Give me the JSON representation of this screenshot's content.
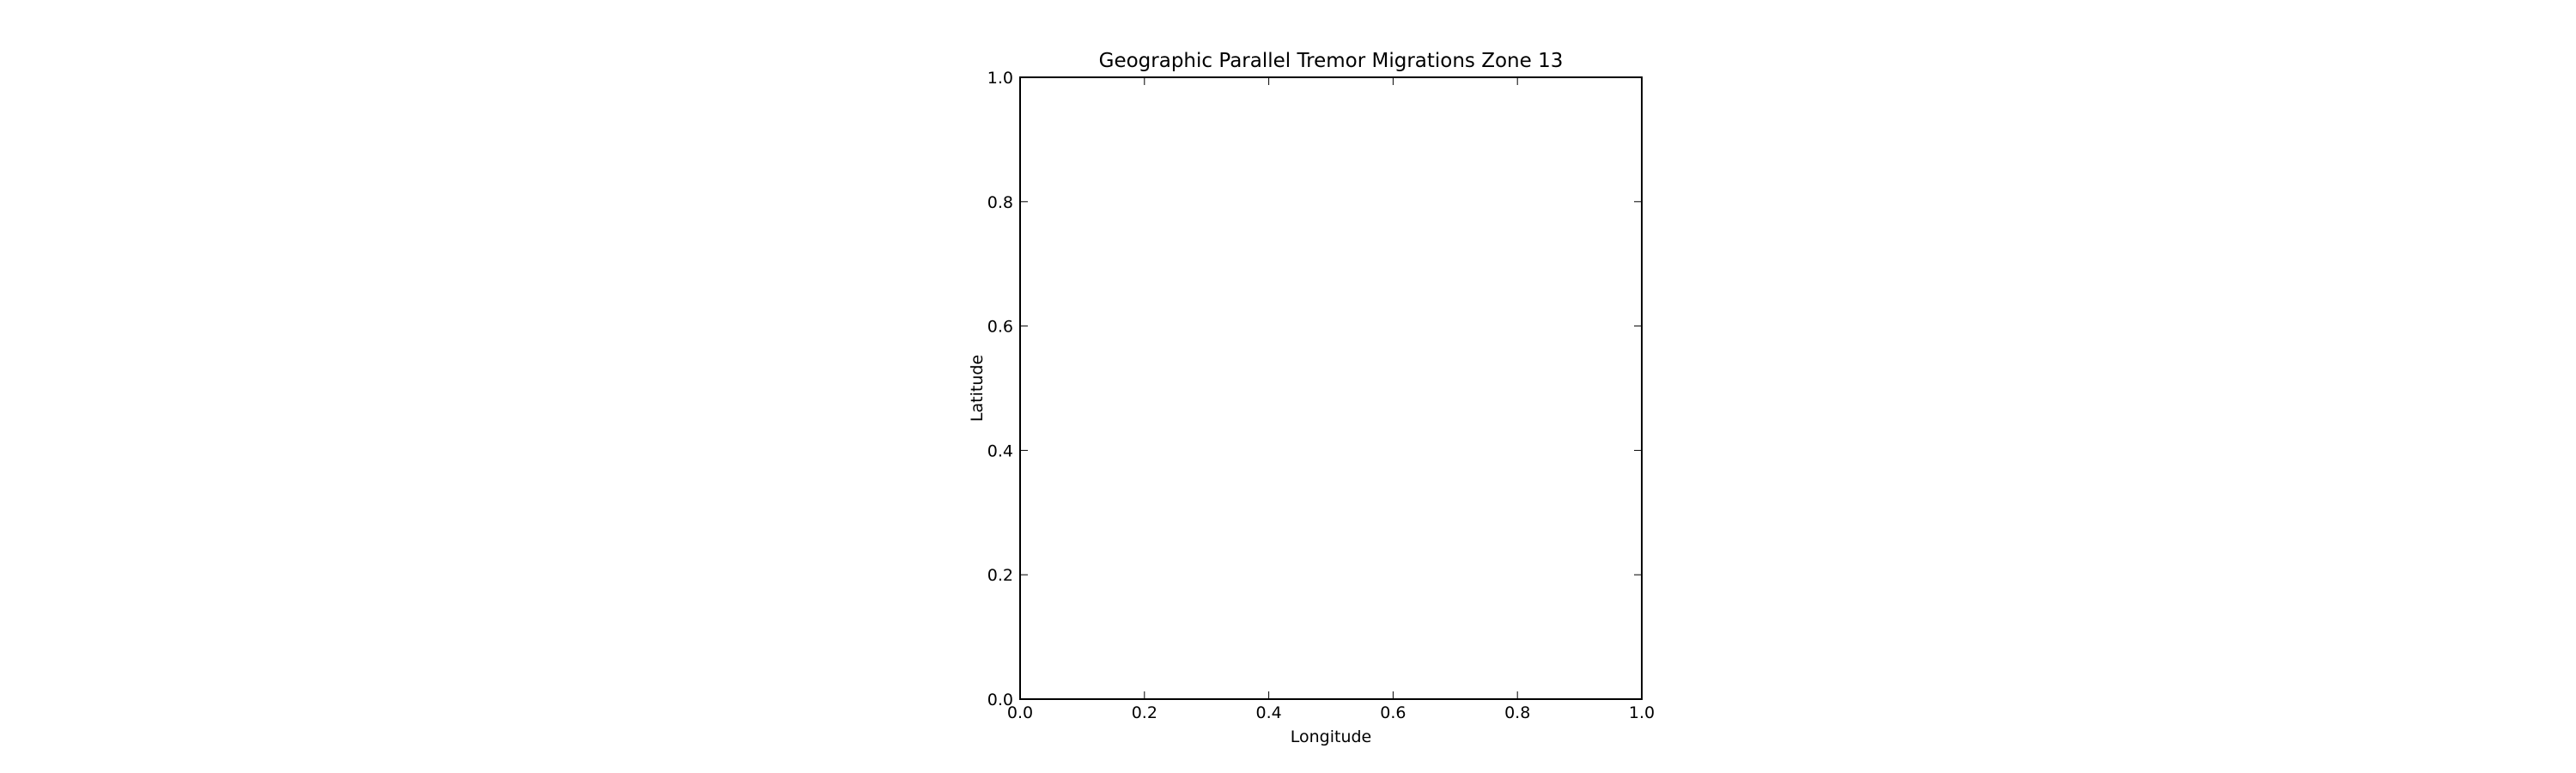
{
  "chart_data": {
    "type": "scatter",
    "title": "Geographic Parallel Tremor Migrations Zone 13",
    "xlabel": "Longitude",
    "ylabel": "Latitude",
    "xlim": [
      0.0,
      1.0
    ],
    "ylim": [
      0.0,
      1.0
    ],
    "xticks": [
      0.0,
      0.2,
      0.4,
      0.6,
      0.8,
      1.0
    ],
    "yticks": [
      0.0,
      0.2,
      0.4,
      0.6,
      0.8,
      1.0
    ],
    "tick_format": "0.0",
    "grid": false,
    "legend": "none",
    "series": [],
    "colors": {
      "axes": "#000000",
      "background": "#ffffff"
    }
  }
}
